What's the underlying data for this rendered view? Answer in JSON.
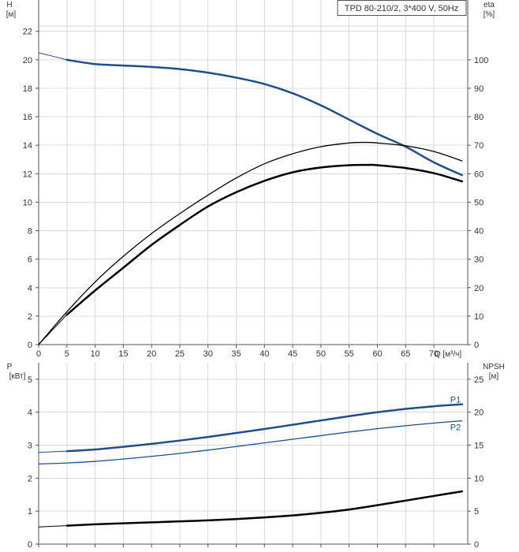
{
  "colors": {
    "grid": "#d8d8d8",
    "axis": "#555555",
    "blue": "#1f4e89",
    "black": "#000000",
    "text": "#333333"
  },
  "chart_data": [
    {
      "type": "line",
      "title": "TPD 80-210/2, 3*400 V, 50Hz",
      "x_axis": {
        "label": "Q [м³/ч]",
        "min": 0,
        "max": 76,
        "ticks": [
          0,
          5,
          10,
          15,
          20,
          25,
          30,
          35,
          40,
          45,
          50,
          55,
          60,
          65,
          70
        ],
        "tick_labels": [
          "0",
          "5",
          "10",
          "15",
          "20",
          "25",
          "30",
          "35",
          "40",
          "45",
          "50",
          "55",
          "60",
          "65",
          "70"
        ]
      },
      "y_axis_left": {
        "label_top": "H",
        "label_unit": "[м]",
        "min": 0,
        "max": 24.2,
        "ticks": [
          0,
          2,
          4,
          6,
          8,
          10,
          12,
          14,
          16,
          18,
          20,
          22
        ],
        "tick_labels": [
          "0",
          "2",
          "4",
          "6",
          "8",
          "10",
          "12",
          "14",
          "16",
          "18",
          "20",
          "22"
        ]
      },
      "y_axis_right": {
        "label_top": "eta",
        "label_unit": "[%]",
        "min": 0,
        "max": 121,
        "ticks": [
          0,
          10,
          20,
          30,
          40,
          50,
          60,
          70,
          80,
          90,
          100
        ],
        "tick_labels": [
          "0",
          "10",
          "20",
          "30",
          "40",
          "50",
          "60",
          "70",
          "80",
          "90",
          "100"
        ]
      },
      "grid": true,
      "series": [
        {
          "key": "head_extrapolated",
          "axis": "left",
          "color": "blue",
          "width": 1,
          "x": [
            0,
            2,
            4,
            5
          ],
          "y": [
            20.5,
            20.3,
            20.1,
            20.0
          ]
        },
        {
          "key": "head",
          "axis": "left",
          "color": "blue",
          "width": 2.5,
          "x": [
            5,
            10,
            15,
            20,
            25,
            30,
            35,
            40,
            45,
            50,
            55,
            60,
            65,
            70,
            75
          ],
          "y": [
            20.0,
            19.7,
            19.6,
            19.5,
            19.35,
            19.1,
            18.75,
            18.3,
            17.65,
            16.8,
            15.8,
            14.8,
            13.9,
            12.8,
            11.9
          ]
        },
        {
          "key": "eta_total",
          "axis": "right",
          "color": "black",
          "width": 1.3,
          "x": [
            0,
            5,
            10,
            15,
            20,
            25,
            30,
            35,
            40,
            45,
            50,
            55,
            58,
            60,
            65,
            70,
            75
          ],
          "y": [
            0,
            11.5,
            22,
            31,
            39,
            46,
            52.5,
            58.5,
            63.5,
            67,
            69.5,
            70.8,
            71,
            70.8,
            69.8,
            67.8,
            64.5
          ]
        },
        {
          "key": "eta_thin_start",
          "axis": "right",
          "color": "black",
          "width": 1,
          "x": [
            0,
            5
          ],
          "y": [
            0,
            10.5
          ]
        },
        {
          "key": "eta_pump",
          "axis": "right",
          "color": "black",
          "width": 2.5,
          "x": [
            5,
            10,
            15,
            20,
            25,
            30,
            35,
            40,
            45,
            50,
            55,
            58,
            60,
            65,
            70,
            75
          ],
          "y": [
            10.5,
            19,
            27,
            35,
            42,
            48.5,
            53.5,
            57.5,
            60.5,
            62.2,
            63,
            63.1,
            63,
            62,
            60.2,
            57.3
          ]
        }
      ]
    },
    {
      "type": "line",
      "x_axis": {
        "min": 0,
        "max": 76,
        "ticks": [
          0,
          5,
          10,
          15,
          20,
          25,
          30,
          35,
          40,
          45,
          50,
          55,
          60,
          65,
          70
        ]
      },
      "y_axis_left": {
        "label_top": "P",
        "label_unit": "[кВт]",
        "min": 0,
        "max": 5.5,
        "ticks": [
          0,
          1,
          2,
          3,
          4,
          5
        ],
        "tick_labels": [
          "0",
          "1",
          "2",
          "3",
          "4",
          "5"
        ]
      },
      "y_axis_right": {
        "label_top": "NPSH",
        "label_unit": "[м]",
        "min": 0,
        "max": 27.5,
        "ticks": [
          0,
          5,
          10,
          15,
          20,
          25
        ],
        "tick_labels": [
          "0",
          "5",
          "10",
          "15",
          "20",
          "25"
        ]
      },
      "grid": true,
      "series": [
        {
          "key": "P1_ext",
          "axis": "left",
          "color": "blue",
          "width": 1,
          "x": [
            0,
            5
          ],
          "y": [
            2.78,
            2.82
          ]
        },
        {
          "key": "P1",
          "name": "P1",
          "axis": "left",
          "color": "blue",
          "width": 2.5,
          "x": [
            5,
            10,
            15,
            20,
            25,
            30,
            35,
            40,
            45,
            50,
            55,
            60,
            65,
            70,
            75
          ],
          "y": [
            2.82,
            2.87,
            2.95,
            3.04,
            3.14,
            3.25,
            3.37,
            3.49,
            3.62,
            3.75,
            3.88,
            4.0,
            4.1,
            4.18,
            4.24
          ]
        },
        {
          "key": "P2",
          "name": "P2",
          "axis": "left",
          "color": "blue",
          "width": 1.3,
          "x": [
            0,
            5,
            10,
            15,
            20,
            25,
            30,
            35,
            40,
            45,
            50,
            55,
            60,
            65,
            70,
            75
          ],
          "y": [
            2.43,
            2.46,
            2.51,
            2.58,
            2.66,
            2.75,
            2.85,
            2.96,
            3.07,
            3.18,
            3.29,
            3.4,
            3.5,
            3.59,
            3.67,
            3.74
          ]
        },
        {
          "key": "NPSH_ext",
          "axis": "right",
          "color": "black",
          "width": 1,
          "x": [
            0,
            5
          ],
          "y": [
            2.6,
            2.8
          ]
        },
        {
          "key": "NPSH",
          "axis": "right",
          "color": "black",
          "width": 2.5,
          "x": [
            5,
            10,
            15,
            20,
            25,
            30,
            35,
            40,
            45,
            50,
            55,
            60,
            65,
            70,
            75
          ],
          "y": [
            2.8,
            3.0,
            3.15,
            3.3,
            3.45,
            3.6,
            3.8,
            4.05,
            4.35,
            4.75,
            5.25,
            5.9,
            6.6,
            7.3,
            8.0
          ]
        }
      ],
      "series_labels": [
        {
          "text": "P1",
          "x": 73,
          "y": 4.39
        },
        {
          "text": "P2",
          "x": 73,
          "y": 3.55
        }
      ]
    }
  ]
}
